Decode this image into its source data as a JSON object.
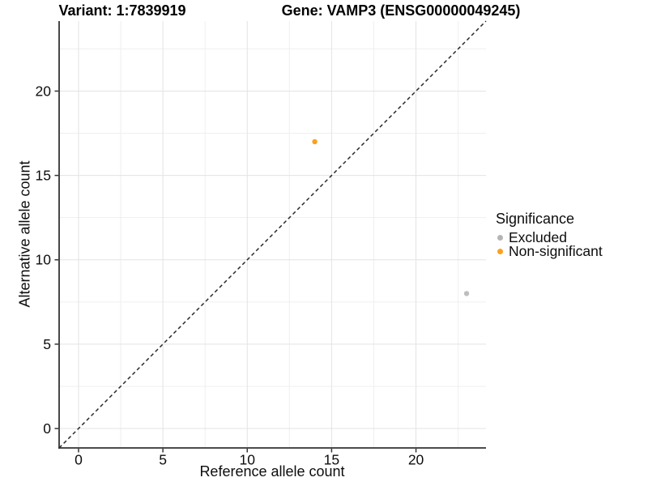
{
  "chart_data": {
    "type": "scatter",
    "titles": {
      "left": "Variant: 1:7839919",
      "right": "Gene: VAMP3 (ENSG00000049245)"
    },
    "xlabel": "Reference allele count",
    "ylabel": "Alternative allele count",
    "xlim": [
      -1.15,
      24.15
    ],
    "ylim": [
      -1.15,
      24.15
    ],
    "x_ticks": [
      0,
      5,
      10,
      15,
      20
    ],
    "y_ticks": [
      0,
      5,
      10,
      15,
      20
    ],
    "x_minor_ticks": [
      2.5,
      7.5,
      12.5,
      17.5,
      22.5
    ],
    "y_minor_ticks": [
      2.5,
      7.5,
      12.5,
      17.5,
      22.5
    ],
    "identity_line": {
      "slope": 1,
      "intercept": 0,
      "style": "dashed",
      "color": "#2b2b2b"
    },
    "grid": {
      "major_color": "#e3e3e3",
      "minor_color": "#efefef"
    },
    "axis": {
      "line_color": "#333333",
      "tick_color": "#333333",
      "text_color": "#0d0d0d"
    },
    "point_radius": 3.2,
    "legend": {
      "title": "Significance",
      "position": "right",
      "entries": [
        {
          "label": "Excluded",
          "color": "#b5b5b5"
        },
        {
          "label": "Non-significant",
          "color": "#fba11b"
        }
      ]
    },
    "series": [
      {
        "name": "Excluded",
        "color": "#bebebe",
        "points": [
          [
            23,
            8
          ]
        ]
      },
      {
        "name": "Non-significant",
        "color": "#fba11b",
        "points": [
          [
            14,
            17
          ]
        ]
      }
    ]
  }
}
